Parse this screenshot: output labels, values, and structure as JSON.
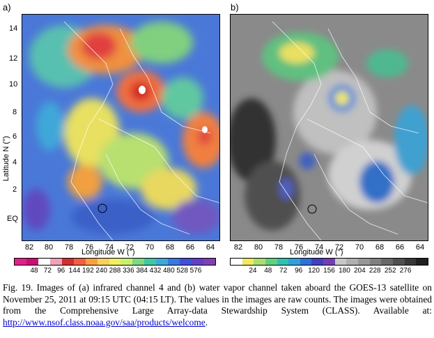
{
  "figure": {
    "panel_a_label": "a)",
    "panel_b_label": "b)",
    "ylabel": "Latitude N (°)",
    "xlabel": "Longitude W (°)",
    "lat_ticks": [
      "14",
      "12",
      "10",
      "8",
      "6",
      "4",
      "2",
      "EQ"
    ],
    "lon_ticks": [
      "82",
      "80",
      "78",
      "76",
      "74",
      "72",
      "70",
      "68",
      "66",
      "64"
    ],
    "colorbar_a": {
      "ticks": [
        "48",
        "72",
        "96",
        "144",
        "192",
        "240",
        "288",
        "336",
        "384",
        "432",
        "480",
        "528",
        "576"
      ],
      "colors": [
        "#e0208a",
        "#c81070",
        "#ffffff",
        "#f0a0b8",
        "#d03030",
        "#f06040",
        "#f8a040",
        "#f8d060",
        "#f0f060",
        "#c8f070",
        "#80d880",
        "#40c8a0",
        "#40a8d8",
        "#3878e0",
        "#4050d8",
        "#6040c8",
        "#8040b0"
      ]
    },
    "colorbar_b": {
      "ticks": [
        "24",
        "48",
        "72",
        "96",
        "120",
        "156",
        "180",
        "204",
        "228",
        "252",
        "276"
      ],
      "colors": [
        "#ffffff",
        "#f0e860",
        "#a8e070",
        "#60d080",
        "#30c0b0",
        "#30a0d8",
        "#3070d8",
        "#4040c0",
        "#7040b0",
        "#c8c8c8",
        "#b0b0b0",
        "#989898",
        "#808080",
        "#686868",
        "#505050",
        "#383838",
        "#202020"
      ]
    }
  },
  "caption": {
    "text": "Fig. 19. Images of (a) infrared channel 4 and (b) water vapor channel taken aboard the GOES-13 satellite on November 25, 2011 at 09:15 UTC (04:15 LT). The values in the images are raw counts. The images were obtained from the Comprehensive Large Array-data Stewardship System (CLASS). Available at: ",
    "link": "http://www.nsof.class.noaa.gov/saa/products/welcome",
    "end": "."
  }
}
